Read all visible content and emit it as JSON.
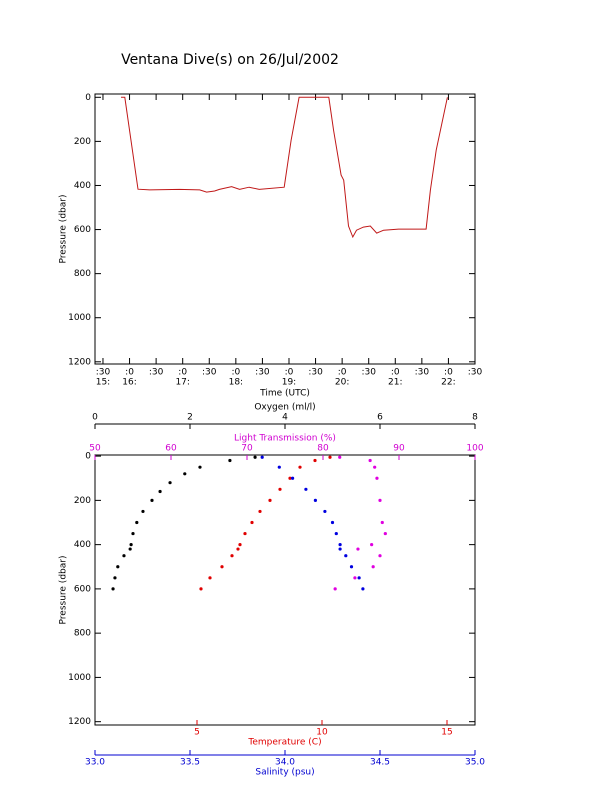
{
  "chart_data": [
    {
      "type": "line",
      "title": "Ventana Dive(s) on 26/Jul/2002",
      "xlabel": "Time (UTC)",
      "ylabel": "Pressure (dbar)",
      "xlim": [
        15.35,
        22.5
      ],
      "xticks": [
        {
          "value": 15.5,
          "label": ":30"
        },
        {
          "value": 16,
          "label": ":0"
        },
        {
          "value": 16.5,
          "label": ":30"
        },
        {
          "value": 17,
          "label": ":0"
        },
        {
          "value": 17.5,
          "label": ":30"
        },
        {
          "value": 18,
          "label": ":0"
        },
        {
          "value": 18.5,
          "label": ":30"
        },
        {
          "value": 19,
          "label": ":0"
        },
        {
          "value": 19.5,
          "label": ":30"
        },
        {
          "value": 20,
          "label": ":0"
        },
        {
          "value": 20.5,
          "label": ":30"
        },
        {
          "value": 21,
          "label": ":0"
        },
        {
          "value": 21.5,
          "label": ":30"
        },
        {
          "value": 22,
          "label": ":0"
        },
        {
          "value": 22.5,
          "label": ":30"
        }
      ],
      "xticks_hours": [
        {
          "value": 15.5,
          "label": "15:"
        },
        {
          "value": 16,
          "label": "16:"
        },
        {
          "value": 17,
          "label": "17:"
        },
        {
          "value": 18,
          "label": "18:"
        },
        {
          "value": 19,
          "label": "19:"
        },
        {
          "value": 20,
          "label": "20:"
        },
        {
          "value": 21,
          "label": "21:"
        },
        {
          "value": 22,
          "label": "22:"
        }
      ],
      "ylim": [
        -15,
        1210
      ],
      "y_reversed": true,
      "yticks": [
        0,
        200,
        400,
        600,
        800,
        1000,
        1200
      ],
      "color": "#c01818",
      "x": [
        15.84,
        15.91,
        16.16,
        16.38,
        16.94,
        17.32,
        17.45,
        17.6,
        17.69,
        17.92,
        18.07,
        18.25,
        18.44,
        18.91,
        19.04,
        19.19,
        19.75,
        19.84,
        19.98,
        20.03,
        20.12,
        20.2,
        20.27,
        20.4,
        20.53,
        20.65,
        20.78,
        21.06,
        21.58,
        21.66,
        21.77,
        21.98
      ],
      "values": [
        0,
        0,
        417,
        420,
        418,
        420,
        430,
        425,
        418,
        405,
        418,
        408,
        418,
        408,
        195,
        0,
        0,
        150,
        353,
        376,
        584,
        634,
        603,
        589,
        584,
        616,
        603,
        598,
        598,
        421,
        240,
        0
      ]
    },
    {
      "type": "scatter",
      "ylabel": "Pressure (dbar)",
      "ylim": [
        -5,
        1215
      ],
      "y_reversed": true,
      "yticks": [
        0,
        200,
        400,
        600,
        800,
        1000,
        1200
      ],
      "axes": [
        {
          "label": "Oxygen (ml/l)",
          "color": "#000000",
          "lim": [
            0,
            8
          ],
          "ticks": [
            0,
            2,
            4,
            6,
            8
          ]
        },
        {
          "label": "Light Transmission (%)",
          "color": "#d000d0",
          "lim": [
            50,
            100
          ],
          "ticks": [
            50,
            60,
            70,
            80,
            90,
            100
          ]
        },
        {
          "label": "Temperature (C)",
          "color": "#e00000",
          "lim": [
            0.92,
            16.12
          ],
          "ticks": [
            5,
            10,
            15
          ]
        },
        {
          "label": "Salinity (psu)",
          "color": "#0000d0",
          "lim": [
            33,
            35
          ],
          "ticks": [
            {
              "value": 33,
              "label": "33.0"
            },
            33.5,
            {
              "value": 34,
              "label": "34.0"
            },
            34.5,
            {
              "value": 35,
              "label": "35.0"
            }
          ]
        }
      ],
      "series": [
        {
          "axis": 0,
          "color": "#000000",
          "x": [
            3.37,
            2.84,
            2.21,
            1.89,
            1.58,
            1.37,
            1.2,
            1.01,
            0.88,
            0.8,
            0.76,
            0.74,
            0.61,
            0.48,
            0.42,
            0.38
          ],
          "values": [
            5,
            20,
            50,
            80,
            120,
            160,
            200,
            250,
            300,
            350,
            400,
            420,
            450,
            500,
            550,
            600
          ]
        },
        {
          "axis": 1,
          "color": "#e000e0",
          "x": [
            82.2,
            86.2,
            86.8,
            87.1,
            87.5,
            87.8,
            88.2,
            86.4,
            84.6,
            87.5,
            86.6,
            84.2,
            81.6
          ],
          "values": [
            5,
            20,
            50,
            100,
            200,
            300,
            350,
            400,
            420,
            450,
            500,
            550,
            600
          ]
        },
        {
          "axis": 2,
          "color": "#e00000",
          "x": [
            10.32,
            9.72,
            9.12,
            8.72,
            8.32,
            7.92,
            7.52,
            7.2,
            6.92,
            6.72,
            6.64,
            6.4,
            6.0,
            5.52,
            5.16
          ],
          "values": [
            5,
            20,
            50,
            100,
            150,
            200,
            250,
            300,
            350,
            400,
            420,
            450,
            500,
            550,
            600
          ]
        },
        {
          "axis": 3,
          "color": "#0000e0",
          "x": [
            33.88,
            33.97,
            34.04,
            34.11,
            34.16,
            34.21,
            34.25,
            34.27,
            34.29,
            34.29,
            34.32,
            34.35,
            34.39,
            34.41
          ],
          "values": [
            5,
            50,
            100,
            150,
            200,
            250,
            300,
            350,
            400,
            420,
            450,
            500,
            550,
            600
          ]
        }
      ]
    }
  ]
}
